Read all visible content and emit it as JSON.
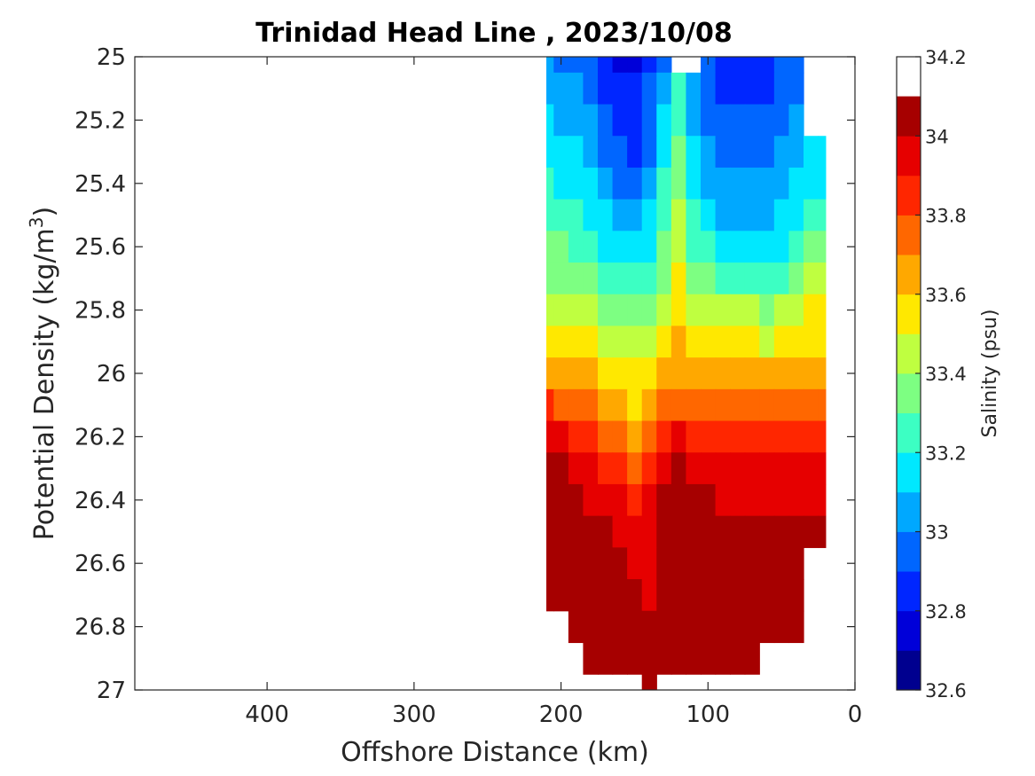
{
  "chart_data": {
    "type": "heatmap",
    "subtype": "filled-contour",
    "title": "Trinidad Head Line , 2023/10/08",
    "xlabel": "Offshore Distance (km)",
    "ylabel_prefix": "Potential Density (kg/m",
    "ylabel_sup": "3",
    "ylabel_suffix": ")",
    "xlim": [
      490,
      0
    ],
    "ylim": [
      27,
      25
    ],
    "x_direction": "reversed",
    "y_direction": "reversed",
    "x_ticks": [
      400,
      300,
      200,
      100,
      0
    ],
    "x_tick_labels": [
      "400",
      "300",
      "200",
      "100",
      "0"
    ],
    "y_ticks": [
      25,
      25.2,
      25.4,
      25.6,
      25.8,
      26,
      26.2,
      26.4,
      26.6,
      26.8,
      27
    ],
    "y_tick_labels": [
      "25",
      "25.2",
      "25.4",
      "25.6",
      "25.8",
      "26",
      "26.2",
      "26.4",
      "26.6",
      "26.8",
      "27"
    ],
    "colorbar": {
      "label": "Salinity (psu)",
      "range": [
        32.6,
        34.2
      ],
      "tick_values": [
        32.6,
        32.8,
        33.0,
        33.2,
        33.4,
        33.6,
        33.8,
        34.0,
        34.2
      ],
      "tick_labels": [
        "32.6",
        "32.8",
        "33",
        "33.2",
        "33.4",
        "33.6",
        "33.8",
        "34",
        "34.2"
      ],
      "levels": [
        32.6,
        32.7,
        32.8,
        32.9,
        33.0,
        33.1,
        33.2,
        33.3,
        33.4,
        33.5,
        33.6,
        33.7,
        33.8,
        33.9,
        34.0,
        34.1,
        34.2
      ],
      "colors": [
        "#00008f",
        "#0000d9",
        "#0026ff",
        "#0066ff",
        "#00a8ff",
        "#00e8ff",
        "#3cffc3",
        "#7dff82",
        "#bfff40",
        "#ffe800",
        "#ffa800",
        "#ff6700",
        "#ff2600",
        "#e60000",
        "#a60000"
      ],
      "colormap": "jet"
    },
    "data_extent": {
      "x_range_km": [
        20,
        210
      ],
      "density_range": [
        25.0,
        27.0
      ]
    },
    "stations_x": [
      210,
      200,
      190,
      180,
      170,
      160,
      150,
      140,
      130,
      120,
      110,
      100,
      90,
      80,
      70,
      60,
      50,
      40,
      30,
      20
    ],
    "density_levels": [
      25.0,
      25.1,
      25.2,
      25.3,
      25.4,
      25.5,
      25.6,
      25.7,
      25.8,
      25.9,
      26.0,
      26.1,
      26.2,
      26.3,
      26.4,
      26.5,
      26.6,
      26.7,
      26.8,
      26.9,
      27.0
    ],
    "salinity_grid": [
      [
        33.05,
        33.0,
        33.0,
        32.95,
        32.85,
        32.8,
        32.8,
        32.9,
        32.95,
        null,
        null,
        32.95,
        32.9,
        32.85,
        32.85,
        32.85,
        32.95,
        32.95,
        null,
        null
      ],
      [
        33.1,
        33.05,
        33.05,
        33.0,
        32.9,
        32.85,
        32.85,
        32.95,
        33.1,
        33.25,
        33.05,
        32.95,
        32.9,
        32.9,
        32.9,
        32.9,
        32.95,
        33.0,
        null,
        null
      ],
      [
        33.15,
        33.1,
        33.1,
        33.05,
        32.95,
        32.9,
        32.85,
        32.95,
        33.15,
        33.3,
        33.1,
        33.0,
        32.95,
        32.95,
        32.95,
        32.95,
        33.0,
        33.05,
        null,
        null
      ],
      [
        33.2,
        33.15,
        33.15,
        33.1,
        33.0,
        32.95,
        32.9,
        33.0,
        33.2,
        33.35,
        33.15,
        33.05,
        33.0,
        33.0,
        33.0,
        33.0,
        33.05,
        33.1,
        33.15,
        33.15
      ],
      [
        33.25,
        33.2,
        33.2,
        33.15,
        33.05,
        33.0,
        32.95,
        33.1,
        33.25,
        33.4,
        33.2,
        33.1,
        33.05,
        33.05,
        33.05,
        33.05,
        33.1,
        33.15,
        33.2,
        33.2
      ],
      [
        33.3,
        33.3,
        33.25,
        33.2,
        33.15,
        33.1,
        33.05,
        33.15,
        33.3,
        33.45,
        33.25,
        33.15,
        33.1,
        33.1,
        33.1,
        33.1,
        33.15,
        33.2,
        33.25,
        33.25
      ],
      [
        33.35,
        33.35,
        33.3,
        33.25,
        33.2,
        33.2,
        33.15,
        33.2,
        33.35,
        33.5,
        33.3,
        33.25,
        33.2,
        33.2,
        33.2,
        33.15,
        33.2,
        33.3,
        33.35,
        33.35
      ],
      [
        33.4,
        33.4,
        33.35,
        33.35,
        33.3,
        33.25,
        33.25,
        33.3,
        33.4,
        33.55,
        33.4,
        33.35,
        33.3,
        33.3,
        33.3,
        33.25,
        33.3,
        33.4,
        33.45,
        33.45
      ],
      [
        33.45,
        33.45,
        33.45,
        33.45,
        33.4,
        33.35,
        33.35,
        33.4,
        33.5,
        33.6,
        33.5,
        33.45,
        33.45,
        33.45,
        33.45,
        33.4,
        33.45,
        33.5,
        33.55,
        33.55
      ],
      [
        33.55,
        33.55,
        33.55,
        33.55,
        33.5,
        33.45,
        33.45,
        33.5,
        33.55,
        33.65,
        33.6,
        33.55,
        33.55,
        33.55,
        33.55,
        33.5,
        33.55,
        33.6,
        33.6,
        33.6
      ],
      [
        33.7,
        33.65,
        33.65,
        33.65,
        33.6,
        33.55,
        33.55,
        33.6,
        33.65,
        33.7,
        33.7,
        33.65,
        33.65,
        33.65,
        33.65,
        33.65,
        33.65,
        33.7,
        33.7,
        33.7
      ],
      [
        33.85,
        33.8,
        33.75,
        33.75,
        33.7,
        33.65,
        33.6,
        33.7,
        33.75,
        33.8,
        33.8,
        33.75,
        33.75,
        33.75,
        33.75,
        33.75,
        33.8,
        33.8,
        33.8,
        33.8
      ],
      [
        34.0,
        33.95,
        33.9,
        33.85,
        33.8,
        33.75,
        33.7,
        33.8,
        33.9,
        33.95,
        33.9,
        33.85,
        33.85,
        33.85,
        33.85,
        33.85,
        33.9,
        33.9,
        33.9,
        33.9
      ],
      [
        34.05,
        34.05,
        34.0,
        33.95,
        33.9,
        33.85,
        33.8,
        33.9,
        34.0,
        34.05,
        34.0,
        33.95,
        33.95,
        33.95,
        33.95,
        33.95,
        33.95,
        33.95,
        33.95,
        33.95
      ],
      [
        34.05,
        34.05,
        34.05,
        34.0,
        34.0,
        33.95,
        33.9,
        33.95,
        34.05,
        34.1,
        34.05,
        34.05,
        34.0,
        34.0,
        34.0,
        34.0,
        34.0,
        34.0,
        34.0,
        34.0
      ],
      [
        34.05,
        34.05,
        34.05,
        34.05,
        34.05,
        34.0,
        33.95,
        34.0,
        34.05,
        34.15,
        34.1,
        34.05,
        34.05,
        34.05,
        34.05,
        34.05,
        34.05,
        34.05,
        34.05,
        34.05
      ],
      [
        34.05,
        34.05,
        34.05,
        34.05,
        34.05,
        34.05,
        34.0,
        34.0,
        34.05,
        34.1,
        34.1,
        34.05,
        34.05,
        34.05,
        34.05,
        34.05,
        34.05,
        34.05,
        null,
        null
      ],
      [
        34.05,
        34.05,
        34.05,
        34.05,
        34.05,
        34.05,
        34.05,
        34.0,
        34.05,
        34.05,
        34.05,
        34.05,
        34.05,
        34.05,
        34.05,
        34.05,
        34.05,
        34.05,
        null,
        null
      ],
      [
        null,
        null,
        34.15,
        34.1,
        34.05,
        34.05,
        34.05,
        34.05,
        34.05,
        34.05,
        34.05,
        34.05,
        34.05,
        34.05,
        34.05,
        34.05,
        34.05,
        34.05,
        null,
        null
      ],
      [
        null,
        null,
        null,
        34.15,
        34.15,
        34.05,
        34.05,
        34.05,
        34.05,
        34.05,
        34.1,
        34.15,
        34.15,
        34.15,
        34.1,
        null,
        null,
        null,
        null,
        null
      ],
      [
        null,
        null,
        null,
        null,
        null,
        null,
        null,
        34.15,
        null,
        null,
        null,
        null,
        null,
        null,
        null,
        null,
        null,
        null,
        null,
        null
      ]
    ]
  }
}
